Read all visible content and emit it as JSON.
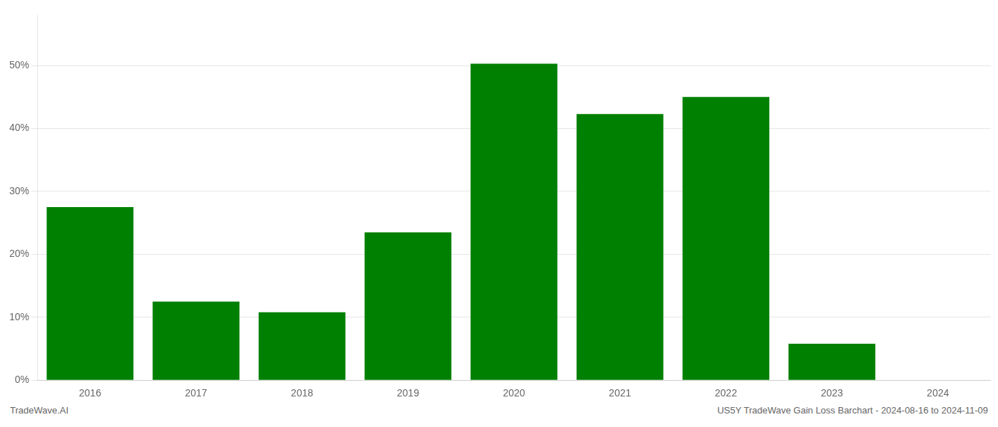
{
  "chart_data": {
    "type": "bar",
    "categories": [
      "2016",
      "2017",
      "2018",
      "2019",
      "2020",
      "2021",
      "2022",
      "2023",
      "2024"
    ],
    "values": [
      27.5,
      12.5,
      10.8,
      23.5,
      50.3,
      42.3,
      45.0,
      5.8,
      0.0
    ],
    "color": "#008000",
    "ylim": [
      0,
      58
    ],
    "yticks": [
      {
        "value": 0,
        "label": "0%"
      },
      {
        "value": 10,
        "label": "10%"
      },
      {
        "value": 20,
        "label": "20%"
      },
      {
        "value": 30,
        "label": "30%"
      },
      {
        "value": 40,
        "label": "40%"
      },
      {
        "value": 50,
        "label": "50%"
      }
    ],
    "grid": true,
    "annotations": [
      "TradeWave.AI",
      "US5Y TradeWave Gain Loss Barchart - 2024-08-16 to 2024-11-09"
    ]
  }
}
